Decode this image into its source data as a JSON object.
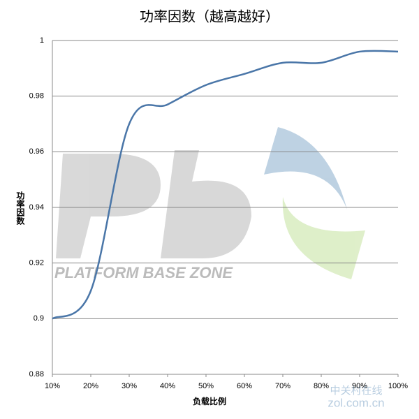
{
  "chart_data": {
    "type": "line",
    "title": "功率因数（越高越好）",
    "x_label": "负载比例",
    "y_label": "功率因数",
    "x": [
      10,
      20,
      30,
      40,
      50,
      60,
      70,
      80,
      90,
      100
    ],
    "series": [
      {
        "name": "功率因数",
        "color": "#4a76a8",
        "values": [
          0.9,
          0.91,
          0.97,
          0.977,
          0.984,
          0.988,
          0.992,
          0.992,
          0.996,
          0.996
        ]
      }
    ],
    "xlim": [
      10,
      100
    ],
    "xticks": [
      {
        "value": 10,
        "label": "10%"
      },
      {
        "value": 20,
        "label": "20%"
      },
      {
        "value": 30,
        "label": "30%"
      },
      {
        "value": 40,
        "label": "40%"
      },
      {
        "value": 50,
        "label": "50%"
      },
      {
        "value": 60,
        "label": "60%"
      },
      {
        "value": 70,
        "label": "70%"
      },
      {
        "value": 80,
        "label": "80%"
      },
      {
        "value": 90,
        "label": "90%"
      },
      {
        "value": 100,
        "label": "100%"
      }
    ],
    "ylim": [
      0.88,
      1
    ],
    "yticks": [
      0.88,
      0.9,
      0.92,
      0.94,
      0.96,
      0.98,
      1
    ],
    "grid": true,
    "annotations": [
      "PLATFORM BASE ZONE",
      "中关村在线",
      "zol.com.cn"
    ]
  }
}
